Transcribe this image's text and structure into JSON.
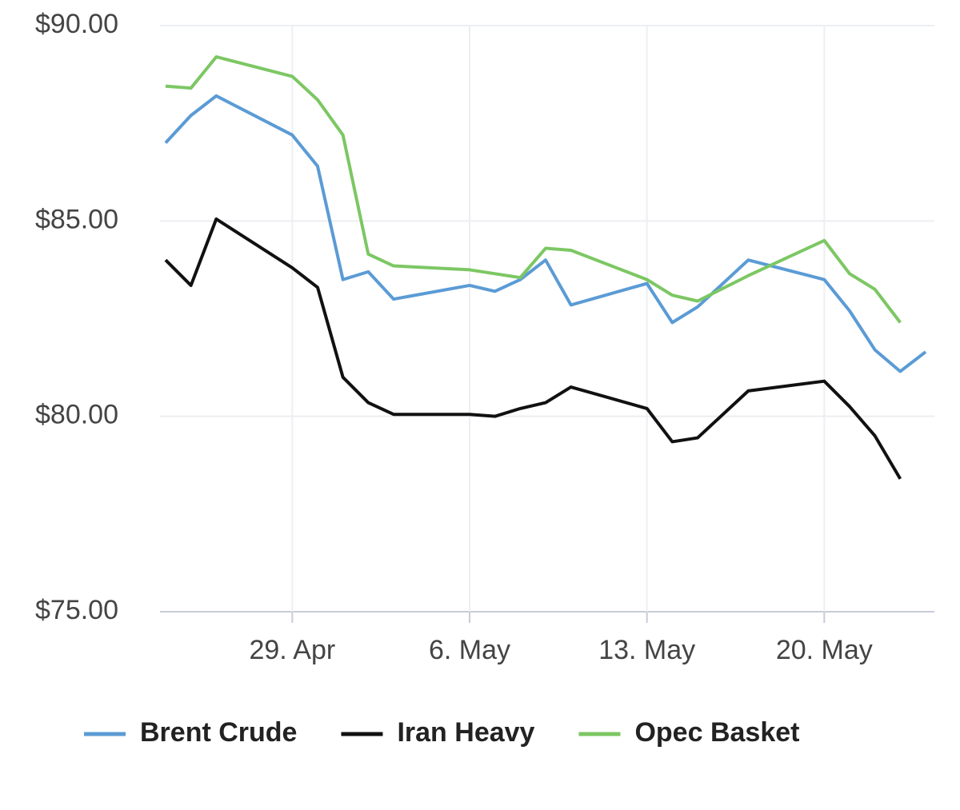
{
  "chart_data": {
    "type": "line",
    "x": [
      "04-24",
      "04-25",
      "04-26",
      "04-29",
      "04-30",
      "05-01",
      "05-02",
      "05-03",
      "05-06",
      "05-07",
      "05-08",
      "05-09",
      "05-10",
      "05-13",
      "05-14",
      "05-15",
      "05-17",
      "05-20",
      "05-21",
      "05-22",
      "05-23",
      "05-24"
    ],
    "xlim": [
      "04-24",
      "05-24"
    ],
    "xticks": [
      {
        "value": "04-29",
        "label": "29. Apr"
      },
      {
        "value": "05-06",
        "label": "6. May"
      },
      {
        "value": "05-13",
        "label": "13. May"
      },
      {
        "value": "05-20",
        "label": "20. May"
      }
    ],
    "ylim": [
      75,
      90
    ],
    "yticks": [
      {
        "value": 75,
        "label": "$75.00"
      },
      {
        "value": 80,
        "label": "$80.00"
      },
      {
        "value": 85,
        "label": "$85.00"
      },
      {
        "value": 90,
        "label": "$90.00"
      }
    ],
    "grid": true,
    "legend": "bottom",
    "series": [
      {
        "name": "Brent Crude",
        "color": "#5b9bd5",
        "values": [
          87.0,
          87.7,
          88.2,
          87.2,
          86.4,
          83.5,
          83.7,
          83.0,
          83.35,
          83.2,
          83.5,
          84.0,
          82.85,
          83.4,
          82.4,
          82.8,
          84.0,
          83.5,
          82.7,
          81.7,
          81.15,
          81.65
        ]
      },
      {
        "name": "Iran Heavy",
        "color": "#111111",
        "values": [
          84.0,
          83.35,
          85.05,
          83.8,
          83.3,
          81.0,
          80.35,
          80.05,
          80.05,
          80.0,
          80.2,
          80.35,
          80.75,
          80.2,
          79.35,
          79.45,
          80.65,
          80.9,
          80.25,
          79.5,
          78.4,
          null
        ]
      },
      {
        "name": "Opec Basket",
        "color": "#7cc763",
        "values": [
          88.45,
          88.4,
          89.2,
          88.7,
          88.1,
          87.2,
          84.15,
          83.85,
          83.75,
          83.65,
          83.55,
          84.3,
          84.25,
          83.5,
          83.1,
          82.95,
          83.6,
          84.5,
          83.65,
          83.25,
          82.4,
          null
        ]
      }
    ]
  }
}
